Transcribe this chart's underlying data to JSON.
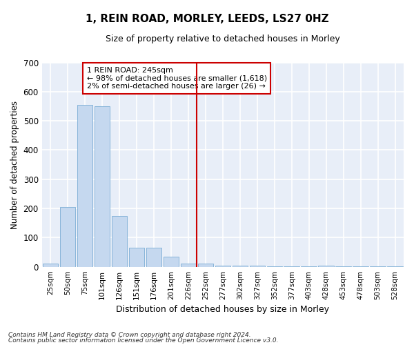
{
  "title": "1, REIN ROAD, MORLEY, LEEDS, LS27 0HZ",
  "subtitle": "Size of property relative to detached houses in Morley",
  "xlabel": "Distribution of detached houses by size in Morley",
  "ylabel": "Number of detached properties",
  "bar_color": "#c5d8ef",
  "bar_edge_color": "#7aadd4",
  "background_color": "#e8eef8",
  "grid_color": "#ffffff",
  "categories": [
    "25sqm",
    "50sqm",
    "75sqm",
    "101sqm",
    "126sqm",
    "151sqm",
    "176sqm",
    "201sqm",
    "226sqm",
    "252sqm",
    "277sqm",
    "302sqm",
    "327sqm",
    "352sqm",
    "377sqm",
    "403sqm",
    "428sqm",
    "453sqm",
    "478sqm",
    "503sqm",
    "528sqm"
  ],
  "values": [
    10,
    205,
    555,
    550,
    175,
    65,
    65,
    35,
    10,
    10,
    5,
    5,
    5,
    2,
    2,
    2,
    5,
    2,
    2,
    2,
    2
  ],
  "ylim": [
    0,
    700
  ],
  "yticks": [
    0,
    100,
    200,
    300,
    400,
    500,
    600,
    700
  ],
  "property_line_x": 8.5,
  "annotation_text": "1 REIN ROAD: 245sqm\n← 98% of detached houses are smaller (1,618)\n2% of semi-detached houses are larger (26) →",
  "annotation_box_color": "#ffffff",
  "annotation_box_edge": "#cc0000",
  "line_color": "#cc0000",
  "fig_bg": "#ffffff",
  "footer1": "Contains HM Land Registry data © Crown copyright and database right 2024.",
  "footer2": "Contains public sector information licensed under the Open Government Licence v3.0."
}
